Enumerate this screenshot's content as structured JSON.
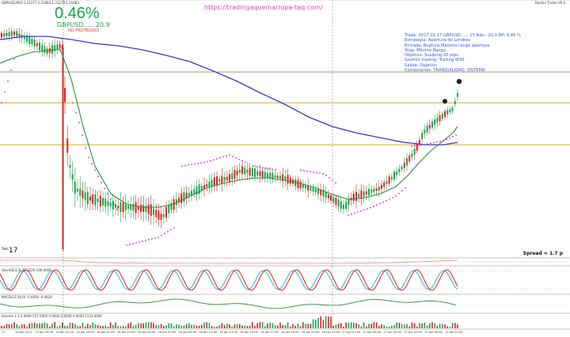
{
  "header": {
    "top_left": "GBPUSD,M10 1.21377 1.21683 1.21279 1.21683",
    "top_right": "Danilul Trader V6.0"
  },
  "overlay": {
    "percent": "0.46%",
    "pair_label": "GBPUSD......20.9",
    "protected": "NO PROTEGIDO",
    "url": "https://tradingaquemarropa-taq.com/"
  },
  "trade_info": [
    "Trade: 2017.01.17 GBPUSD...... 15  Rdo.: 20.9  BP: 0.46 %",
    "Estrategia: Apertura de Londres",
    "Entrada: Ruptura Máximo rango apertura",
    "Stop: Mínimo Rango",
    "Objetivo: Scalping 20 pips",
    "Gestión trading: Trailing W30",
    "Salida: Objetivo",
    "Comentarios: TRANQUILIDAD, SISTEMA"
  ],
  "bottom_bar": {
    "sec_label": "Sec",
    "sec_value": "17",
    "spread": "Spread = 1.7 p"
  },
  "indicators": {
    "stoch_label": "Stoch(8,3,3) 75.3220 100.0000",
    "macd_label": "MACD(12,26,9) -0.4600 -0.4824",
    "volume_label": "Volume 1.3 0.0000 557.0000 0.0000 0.0000 0.0000 1131.0000"
  },
  "time_axis": [
    "17",
    "13 Jan 2017",
    "13 Jan 19:00",
    "13 Jan 21:00",
    "13 Jan 23:00",
    "16 Jan 01:00",
    "16 Jan 03:00",
    "16 Jan 05:00",
    "16 Jan 07:00",
    "16 Jan 09:00",
    "16 Jan 11:00",
    "16 Jan 13:00",
    "16 Jan 15:00",
    "16 Jan 17:00",
    "16 Jan 19:00",
    "16 Jan 21:00",
    "16 Jan 23:00",
    "17 Jan 01:00",
    "17 Jan 03:00",
    "17 Jan 05:00",
    "17 Jan 07:00",
    "17 Jan 09:00",
    "17 Jan 11:00"
  ],
  "colors": {
    "bull": "#1aa34a",
    "bear": "#e02020",
    "ma_fast": "#2e8b3a",
    "ma_slow": "#3a3ad0",
    "psar": "#e020e0",
    "level": "#e8b84a",
    "stoch_main": "#e02020",
    "stoch_signal": "#30b0e0",
    "macd": "#2e8b3a"
  },
  "chart_data": {
    "type": "candlestick",
    "title": "GBPUSD,M10",
    "series": [
      {
        "name": "fast MA",
        "values": []
      },
      {
        "name": "slow MA",
        "values": []
      }
    ]
  }
}
